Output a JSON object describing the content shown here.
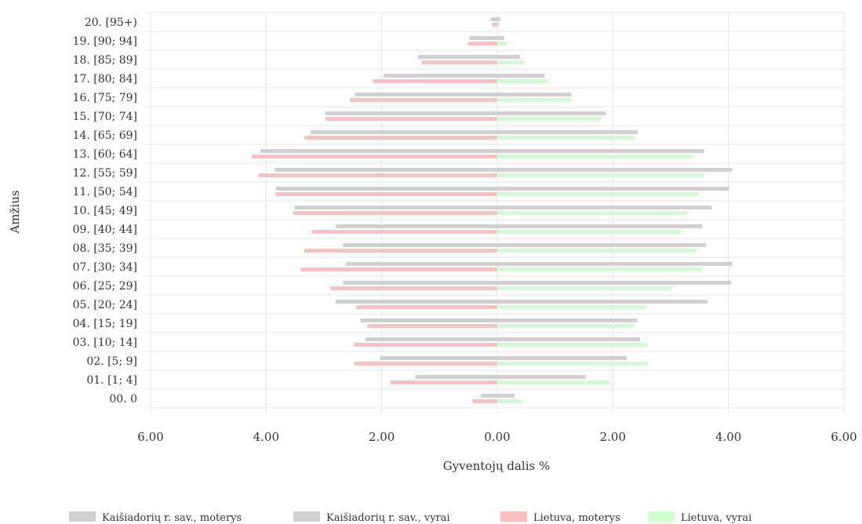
{
  "chart_data": {
    "type": "bar",
    "orientation": "horizontal",
    "layout": "population-pyramid",
    "xlabel": "Gyventojų dalis %",
    "ylabel": "Amžius",
    "xlim": [
      -6,
      6
    ],
    "x_ticks": [
      "6.00",
      "4.00",
      "2.00",
      "0.00",
      "2.00",
      "4.00",
      "6.00"
    ],
    "grid": true,
    "legend_position": "bottom",
    "categories": [
      "00. 0",
      "01. [1; 4]",
      "02. [5; 9]",
      "03. [10; 14]",
      "04. [15; 19]",
      "05. [20; 24]",
      "06. [25; 29]",
      "07. [30; 34]",
      "08. [35; 39]",
      "09. [40; 44]",
      "10. [45; 49]",
      "11. [50; 54]",
      "12. [55; 59]",
      "13. [60; 64]",
      "14. [65; 69]",
      "15. [70; 74]",
      "16. [75; 79]",
      "17. [80; 84]",
      "18. [85; 89]",
      "19. [90; 94]",
      "20. [95+)"
    ],
    "series": [
      {
        "name": "Kaišiadorių r. sav., moterys",
        "side": "left",
        "color": "#d0d0d0",
        "values": [
          0.28,
          1.42,
          2.03,
          2.28,
          2.37,
          2.8,
          2.67,
          2.62,
          2.67,
          2.8,
          3.51,
          3.83,
          3.85,
          4.1,
          3.23,
          2.98,
          2.47,
          1.97,
          1.37,
          0.48,
          0.11
        ]
      },
      {
        "name": "Kaišiadorių r. sav., vyrai",
        "side": "right",
        "color": "#d0d0d0",
        "values": [
          0.3,
          1.53,
          2.24,
          2.47,
          2.42,
          3.64,
          4.05,
          4.07,
          3.61,
          3.55,
          3.71,
          4.01,
          4.07,
          3.58,
          2.43,
          1.88,
          1.28,
          0.82,
          0.39,
          0.12,
          0.05
        ]
      },
      {
        "name": "Lietuva, moterys",
        "side": "left",
        "color": "#ffbfbf",
        "values": [
          0.43,
          1.85,
          2.48,
          2.48,
          2.25,
          2.44,
          2.89,
          3.4,
          3.34,
          3.21,
          3.54,
          3.84,
          4.13,
          4.25,
          3.34,
          2.98,
          2.55,
          2.15,
          1.31,
          0.51,
          0.09
        ]
      },
      {
        "name": "Lietuva, vyrai",
        "side": "right",
        "color": "#ccffcc",
        "values": [
          0.44,
          1.95,
          2.62,
          2.59,
          2.36,
          2.58,
          3.02,
          3.55,
          3.44,
          3.18,
          3.29,
          3.49,
          3.58,
          3.38,
          2.38,
          1.79,
          1.27,
          0.89,
          0.46,
          0.16,
          0.03
        ]
      }
    ]
  }
}
